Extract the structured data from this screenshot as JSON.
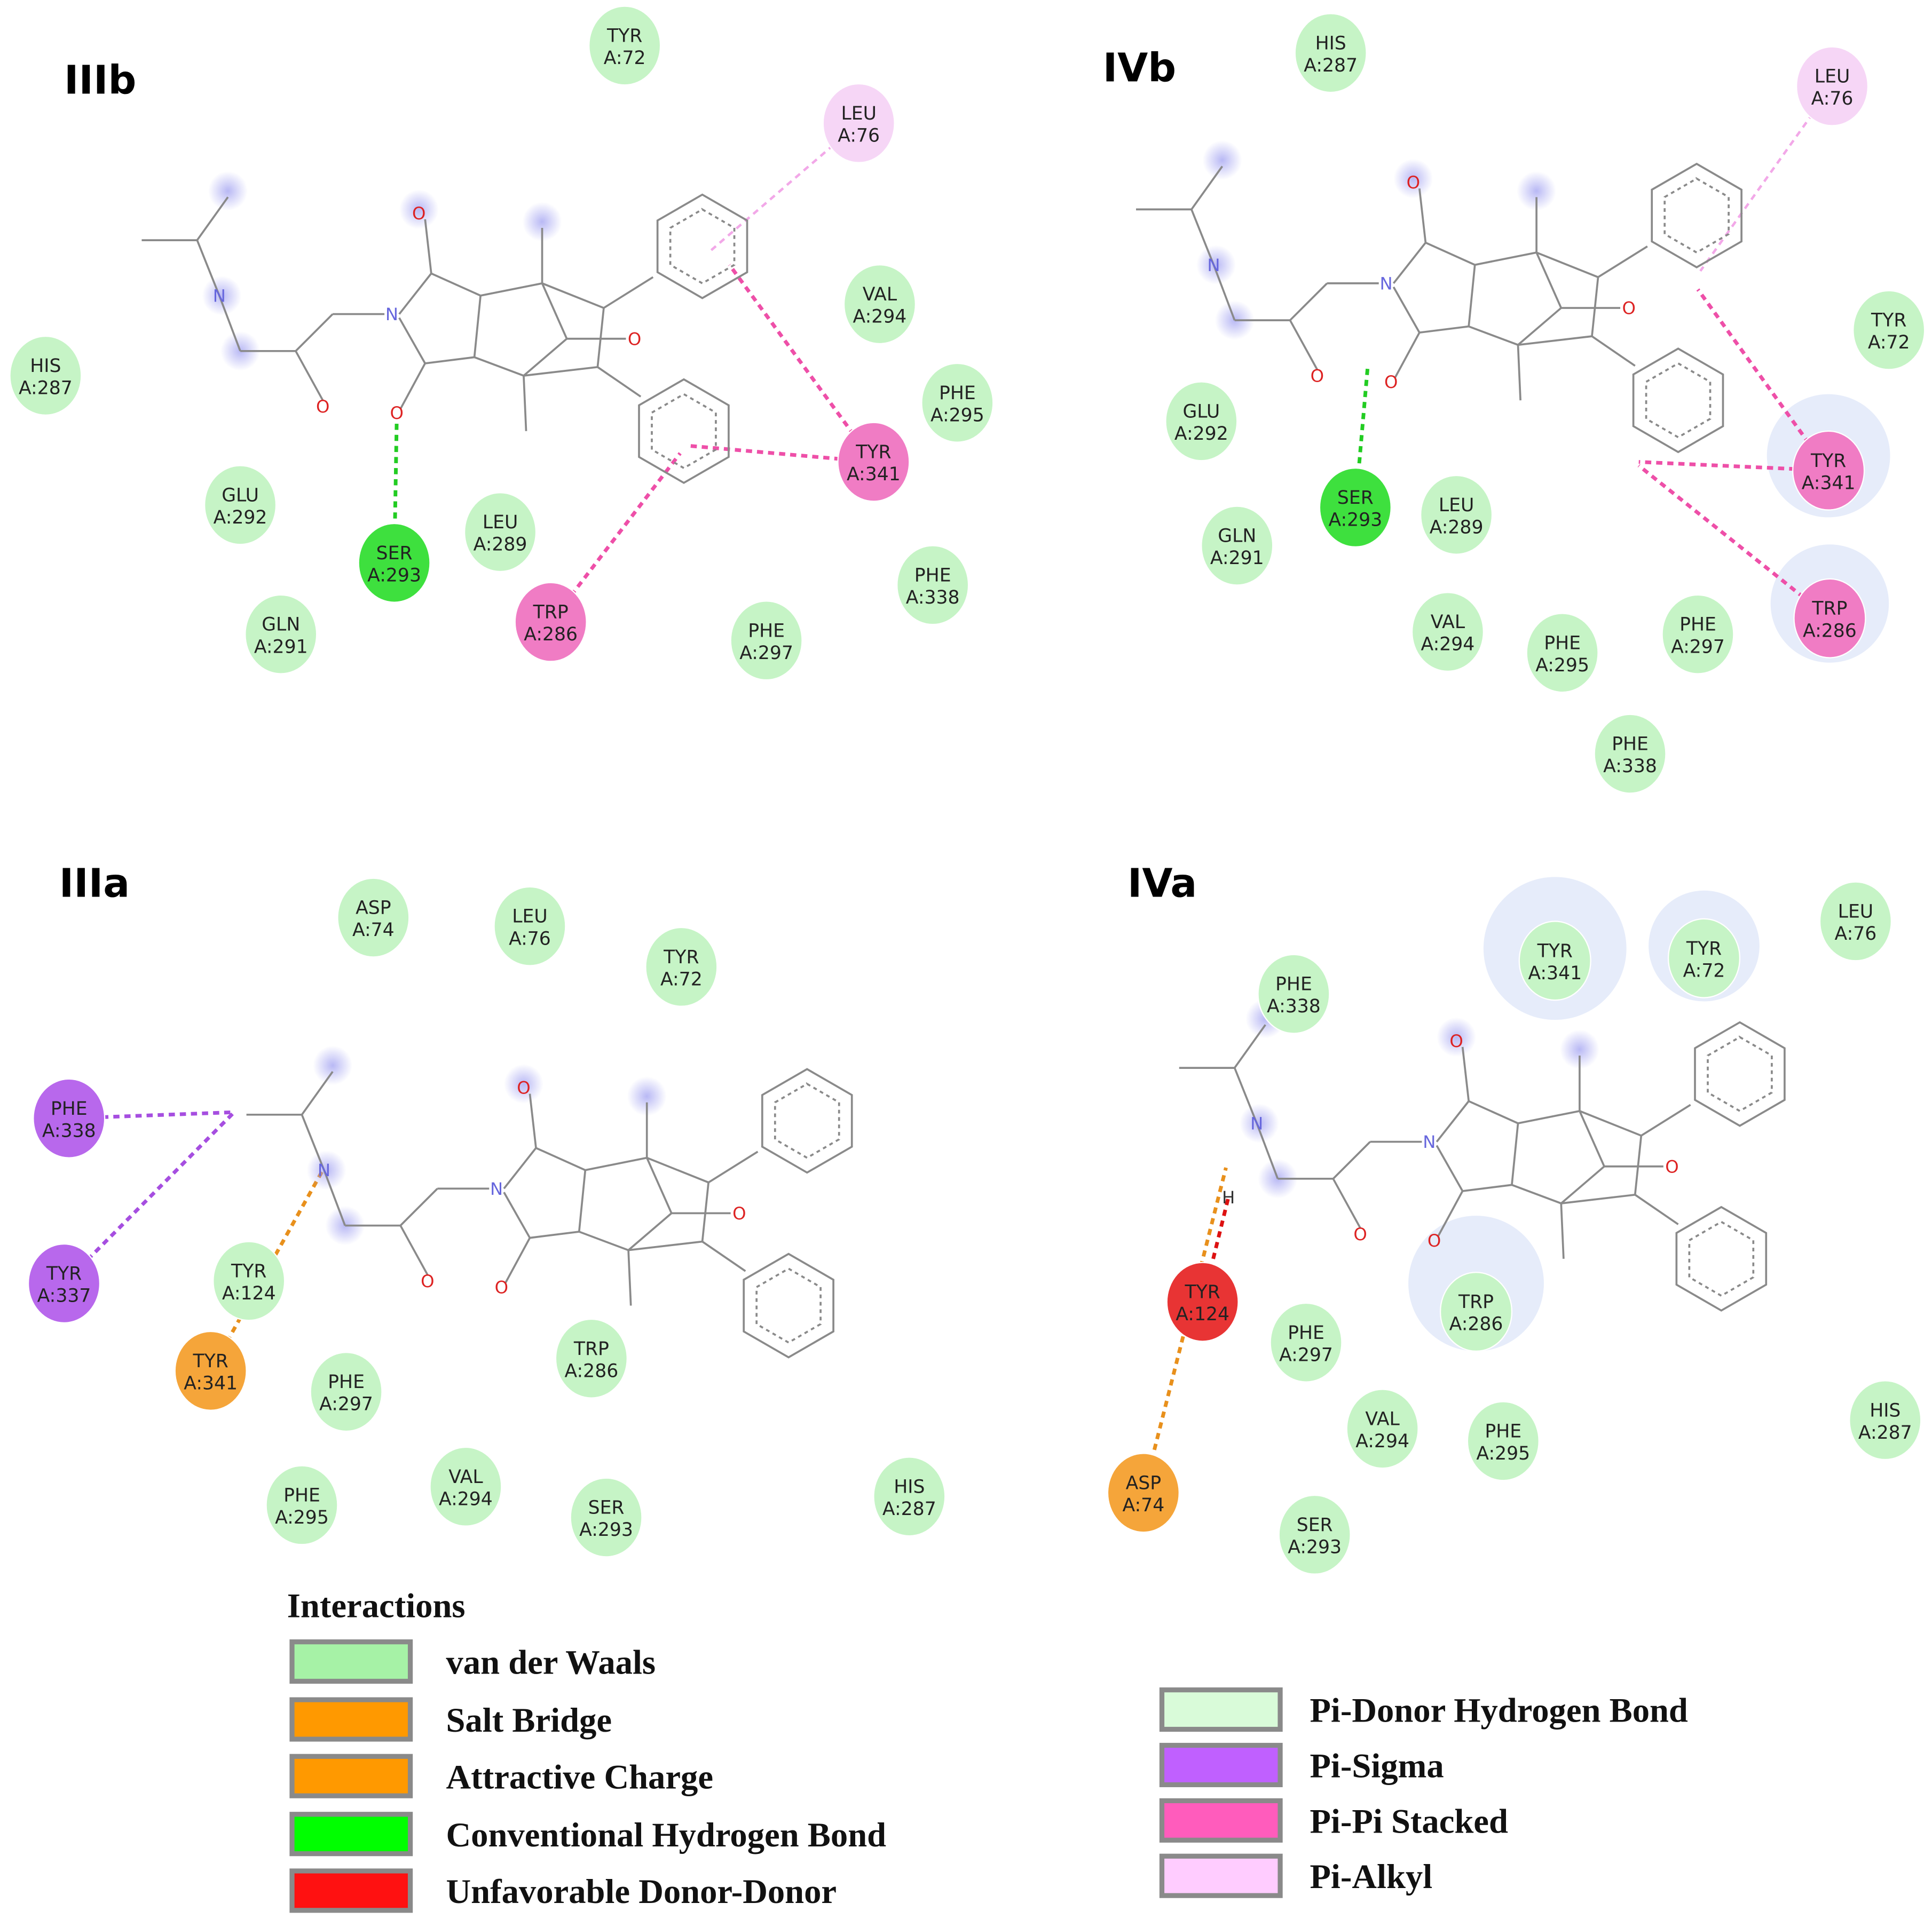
{
  "colors": {
    "van_der_waals": "#a6f2a6",
    "salt_bridge": "#ff9900",
    "attractive_charge": "#ff9900",
    "conventional_hydrogen_bond": "#00ff00",
    "unfavorable_donor_donor": "#ff1111",
    "pi_donor_hydrogen_bond": "#d9fbd9",
    "pi_sigma": "#c060ff",
    "pi_pi_stacked": "#ff5cbc",
    "pi_alkyl": "#ffccff"
  },
  "panels": [
    {
      "label": "IIIb",
      "residues": [
        {
          "name": "TYR",
          "id": "A:72",
          "type": "van_der_waals"
        },
        {
          "name": "LEU",
          "id": "A:76",
          "type": "pi_alkyl"
        },
        {
          "name": "VAL",
          "id": "A:294",
          "type": "van_der_waals"
        },
        {
          "name": "HIS",
          "id": "A:287",
          "type": "van_der_waals"
        },
        {
          "name": "PHE",
          "id": "A:295",
          "type": "van_der_waals"
        },
        {
          "name": "TYR",
          "id": "A:341",
          "type": "pi_pi_stacked"
        },
        {
          "name": "GLU",
          "id": "A:292",
          "type": "van_der_waals"
        },
        {
          "name": "LEU",
          "id": "A:289",
          "type": "van_der_waals"
        },
        {
          "name": "SER",
          "id": "A:293",
          "type": "conventional_hydrogen_bond"
        },
        {
          "name": "TRP",
          "id": "A:286",
          "type": "pi_pi_stacked"
        },
        {
          "name": "GLN",
          "id": "A:291",
          "type": "van_der_waals"
        },
        {
          "name": "PHE",
          "id": "A:297",
          "type": "van_der_waals"
        },
        {
          "name": "PHE",
          "id": "A:338",
          "type": "van_der_waals"
        }
      ]
    },
    {
      "label": "IVb",
      "residues": [
        {
          "name": "HIS",
          "id": "A:287",
          "type": "van_der_waals"
        },
        {
          "name": "LEU",
          "id": "A:76",
          "type": "pi_alkyl"
        },
        {
          "name": "TYR",
          "id": "A:72",
          "type": "van_der_waals"
        },
        {
          "name": "GLU",
          "id": "A:292",
          "type": "van_der_waals"
        },
        {
          "name": "TYR",
          "id": "A:341",
          "type": "pi_pi_stacked"
        },
        {
          "name": "SER",
          "id": "A:293",
          "type": "conventional_hydrogen_bond"
        },
        {
          "name": "LEU",
          "id": "A:289",
          "type": "van_der_waals"
        },
        {
          "name": "GLN",
          "id": "A:291",
          "type": "van_der_waals"
        },
        {
          "name": "TRP",
          "id": "A:286",
          "type": "pi_pi_stacked"
        },
        {
          "name": "VAL",
          "id": "A:294",
          "type": "van_der_waals"
        },
        {
          "name": "PHE",
          "id": "A:295",
          "type": "van_der_waals"
        },
        {
          "name": "PHE",
          "id": "A:297",
          "type": "van_der_waals"
        },
        {
          "name": "PHE",
          "id": "A:338",
          "type": "van_der_waals"
        }
      ]
    },
    {
      "label": "IIIa",
      "residues": [
        {
          "name": "ASP",
          "id": "A:74",
          "type": "van_der_waals"
        },
        {
          "name": "LEU",
          "id": "A:76",
          "type": "van_der_waals"
        },
        {
          "name": "TYR",
          "id": "A:72",
          "type": "van_der_waals"
        },
        {
          "name": "PHE",
          "id": "A:338",
          "type": "pi_sigma"
        },
        {
          "name": "TYR",
          "id": "A:337",
          "type": "pi_sigma"
        },
        {
          "name": "TYR",
          "id": "A:124",
          "type": "van_der_waals"
        },
        {
          "name": "TYR",
          "id": "A:341",
          "type": "attractive_charge"
        },
        {
          "name": "PHE",
          "id": "A:297",
          "type": "van_der_waals"
        },
        {
          "name": "TRP",
          "id": "A:286",
          "type": "van_der_waals"
        },
        {
          "name": "PHE",
          "id": "A:295",
          "type": "van_der_waals"
        },
        {
          "name": "VAL",
          "id": "A:294",
          "type": "van_der_waals"
        },
        {
          "name": "SER",
          "id": "A:293",
          "type": "van_der_waals"
        },
        {
          "name": "HIS",
          "id": "A:287",
          "type": "van_der_waals"
        }
      ]
    },
    {
      "label": "IVa",
      "residues": [
        {
          "name": "LEU",
          "id": "A:76",
          "type": "van_der_waals"
        },
        {
          "name": "TYR",
          "id": "A:341",
          "type": "van_der_waals"
        },
        {
          "name": "TYR",
          "id": "A:72",
          "type": "van_der_waals"
        },
        {
          "name": "PHE",
          "id": "A:338",
          "type": "van_der_waals"
        },
        {
          "name": "TYR",
          "id": "A:124",
          "type": "unfavorable_donor_donor"
        },
        {
          "name": "PHE",
          "id": "A:297",
          "type": "van_der_waals"
        },
        {
          "name": "TRP",
          "id": "A:286",
          "type": "van_der_waals"
        },
        {
          "name": "VAL",
          "id": "A:294",
          "type": "van_der_waals"
        },
        {
          "name": "PHE",
          "id": "A:295",
          "type": "van_der_waals"
        },
        {
          "name": "HIS",
          "id": "A:287",
          "type": "van_der_waals"
        },
        {
          "name": "ASP",
          "id": "A:74",
          "type": "salt_bridge"
        },
        {
          "name": "SER",
          "id": "A:293",
          "type": "van_der_waals"
        }
      ]
    }
  ],
  "atoms": {
    "O": "O",
    "N": "N",
    "H": "H"
  },
  "legend": {
    "title": "Interactions",
    "items": [
      {
        "label": "van der Waals",
        "type": "van_der_waals"
      },
      {
        "label": "Salt Bridge",
        "type": "salt_bridge"
      },
      {
        "label": "Attractive Charge",
        "type": "attractive_charge"
      },
      {
        "label": "Conventional Hydrogen Bond",
        "type": "conventional_hydrogen_bond"
      },
      {
        "label": "Unfavorable Donor-Donor",
        "type": "unfavorable_donor_donor"
      },
      {
        "label": "Pi-Donor Hydrogen Bond",
        "type": "pi_donor_hydrogen_bond"
      },
      {
        "label": "Pi-Sigma",
        "type": "pi_sigma"
      },
      {
        "label": "Pi-Pi Stacked",
        "type": "pi_pi_stacked"
      },
      {
        "label": "Pi-Alkyl",
        "type": "pi_alkyl"
      }
    ]
  }
}
